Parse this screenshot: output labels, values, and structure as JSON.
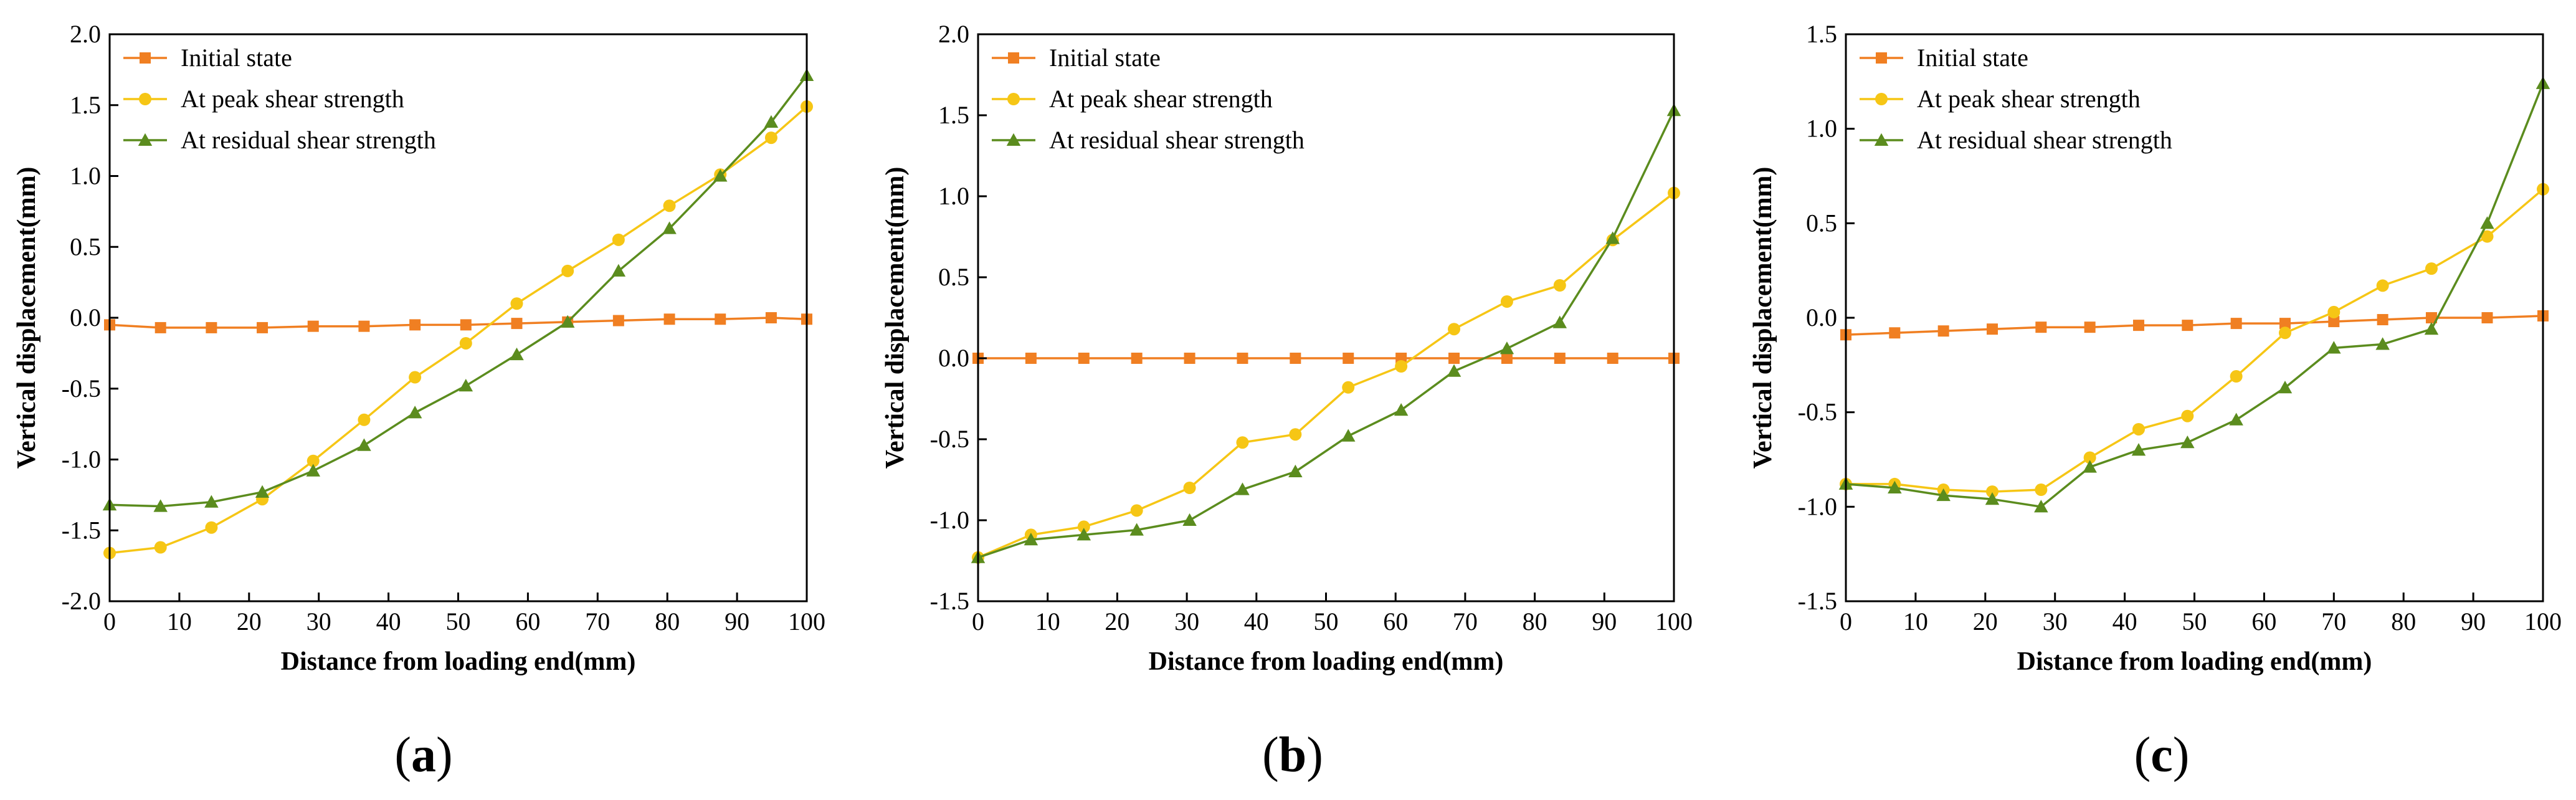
{
  "colors": {
    "initial": "#F07F22",
    "peak": "#F6C615",
    "residual": "#5B8C1E",
    "axis": "#000000"
  },
  "chart_data": [
    {
      "type": "line",
      "caption": "(a)",
      "caption_letter": "a",
      "xlabel": "Distance from loading end(mm)",
      "ylabel": "Vertical displacement(mm)",
      "xlim": [
        0,
        100
      ],
      "ylim": [
        -2.0,
        2.0
      ],
      "xticks": [
        0,
        10,
        20,
        30,
        40,
        50,
        60,
        70,
        80,
        90,
        100
      ],
      "yticks": [
        -2.0,
        -1.5,
        -1.0,
        -0.5,
        0.0,
        0.5,
        1.0,
        1.5,
        2.0
      ],
      "ytick_labels": [
        "-2.0",
        "-1.5",
        "-1.0",
        "-0.5",
        "0.0",
        "0.5",
        "1.0",
        "1.5",
        "2.0"
      ],
      "legend_position": "top-left",
      "series": [
        {
          "name": "Initial state",
          "marker": "square",
          "color": "#F07F22",
          "x": [
            0,
            7.3,
            14.6,
            21.9,
            29.2,
            36.5,
            43.8,
            51.1,
            58.4,
            65.7,
            73,
            80.3,
            87.6,
            94.9,
            100
          ],
          "y": [
            -0.05,
            -0.07,
            -0.07,
            -0.07,
            -0.06,
            -0.06,
            -0.05,
            -0.05,
            -0.04,
            -0.03,
            -0.02,
            -0.01,
            -0.01,
            0.0,
            -0.01
          ]
        },
        {
          "name": "At peak shear strength",
          "marker": "circle",
          "color": "#F6C615",
          "x": [
            0,
            7.3,
            14.6,
            21.9,
            29.2,
            36.5,
            43.8,
            51.1,
            58.4,
            65.7,
            73,
            80.3,
            87.6,
            94.9,
            100
          ],
          "y": [
            -1.66,
            -1.62,
            -1.48,
            -1.28,
            -1.01,
            -0.72,
            -0.42,
            -0.18,
            0.1,
            0.33,
            0.55,
            0.79,
            1.01,
            1.27,
            1.49
          ]
        },
        {
          "name": "At residual shear strength",
          "marker": "triangle",
          "color": "#5B8C1E",
          "x": [
            0,
            7.3,
            14.6,
            21.9,
            29.2,
            36.5,
            43.8,
            51.1,
            58.4,
            65.7,
            73,
            80.3,
            87.6,
            94.9,
            100
          ],
          "y": [
            -1.32,
            -1.33,
            -1.3,
            -1.23,
            -1.08,
            -0.9,
            -0.67,
            -0.48,
            -0.26,
            -0.03,
            0.33,
            0.63,
            1.0,
            1.38,
            1.71
          ]
        }
      ]
    },
    {
      "type": "line",
      "caption": "(b)",
      "caption_letter": "b",
      "xlabel": "Distance from loading end(mm)",
      "ylabel": "Vertical displacement(mm)",
      "xlim": [
        0,
        100
      ],
      "ylim": [
        -1.5,
        2.0
      ],
      "xticks": [
        0,
        10,
        20,
        30,
        40,
        50,
        60,
        70,
        80,
        90,
        100
      ],
      "yticks": [
        -1.5,
        -1.0,
        -0.5,
        0.0,
        0.5,
        1.0,
        1.5,
        2.0
      ],
      "ytick_labels": [
        "-1.5",
        "-1.0",
        "-0.5",
        "0.0",
        "0.5",
        "1.0",
        "1.5",
        "2.0"
      ],
      "legend_position": "top-left",
      "series": [
        {
          "name": "Initial state",
          "marker": "square",
          "color": "#F07F22",
          "x": [
            0,
            7.6,
            15.2,
            22.8,
            30.4,
            38,
            45.6,
            53.2,
            60.8,
            68.4,
            76,
            83.6,
            91.2,
            100
          ],
          "y": [
            0,
            0,
            0,
            0,
            0,
            0,
            0,
            0,
            0,
            0,
            0,
            0,
            0,
            0
          ]
        },
        {
          "name": "At peak shear strength",
          "marker": "circle",
          "color": "#F6C615",
          "x": [
            0,
            7.6,
            15.2,
            22.8,
            30.4,
            38,
            45.6,
            53.2,
            60.8,
            68.4,
            76,
            83.6,
            91.2,
            100
          ],
          "y": [
            -1.23,
            -1.09,
            -1.04,
            -0.94,
            -0.8,
            -0.52,
            -0.47,
            -0.18,
            -0.05,
            0.18,
            0.35,
            0.45,
            0.73,
            1.02
          ]
        },
        {
          "name": "At residual shear strength",
          "marker": "triangle",
          "color": "#5B8C1E",
          "x": [
            0,
            7.6,
            15.2,
            22.8,
            30.4,
            38,
            45.6,
            53.2,
            60.8,
            68.4,
            76,
            83.6,
            91.2,
            100
          ],
          "y": [
            -1.23,
            -1.12,
            -1.09,
            -1.06,
            -1.0,
            -0.81,
            -0.7,
            -0.48,
            -0.32,
            -0.08,
            0.06,
            0.22,
            0.74,
            1.53
          ]
        }
      ]
    },
    {
      "type": "line",
      "caption": "(c)",
      "caption_letter": "c",
      "xlabel": "Distance from loading end(mm)",
      "ylabel": "Vertical displacement(mm)",
      "xlim": [
        0,
        100
      ],
      "ylim": [
        -1.5,
        1.5
      ],
      "xticks": [
        0,
        10,
        20,
        30,
        40,
        50,
        60,
        70,
        80,
        90,
        100
      ],
      "yticks": [
        -1.5,
        -1.0,
        -0.5,
        0.0,
        0.5,
        1.0,
        1.5
      ],
      "ytick_labels": [
        "-1.5",
        "-1.0",
        "-0.5",
        "0.0",
        "0.5",
        "1.0",
        "1.5"
      ],
      "legend_position": "top-left",
      "series": [
        {
          "name": "Initial state",
          "marker": "square",
          "color": "#F07F22",
          "x": [
            0,
            7,
            14,
            21,
            28,
            35,
            42,
            49,
            56,
            63,
            70,
            77,
            84,
            92,
            100
          ],
          "y": [
            -0.09,
            -0.08,
            -0.07,
            -0.06,
            -0.05,
            -0.05,
            -0.04,
            -0.04,
            -0.03,
            -0.03,
            -0.02,
            -0.01,
            0.0,
            0.0,
            0.01
          ]
        },
        {
          "name": "At peak shear strength",
          "marker": "circle",
          "color": "#F6C615",
          "x": [
            0,
            7,
            14,
            21,
            28,
            35,
            42,
            49,
            56,
            63,
            70,
            77,
            84,
            92,
            100
          ],
          "y": [
            -0.88,
            -0.88,
            -0.91,
            -0.92,
            -0.91,
            -0.74,
            -0.59,
            -0.52,
            -0.31,
            -0.08,
            0.03,
            0.17,
            0.26,
            0.43,
            0.68
          ]
        },
        {
          "name": "At residual shear strength",
          "marker": "triangle",
          "color": "#5B8C1E",
          "x": [
            0,
            7,
            14,
            21,
            28,
            35,
            42,
            49,
            56,
            63,
            70,
            77,
            84,
            92,
            100
          ],
          "y": [
            -0.88,
            -0.9,
            -0.94,
            -0.96,
            -1.0,
            -0.79,
            -0.7,
            -0.66,
            -0.54,
            -0.37,
            -0.16,
            -0.14,
            -0.06,
            0.5,
            1.24
          ]
        }
      ]
    }
  ]
}
